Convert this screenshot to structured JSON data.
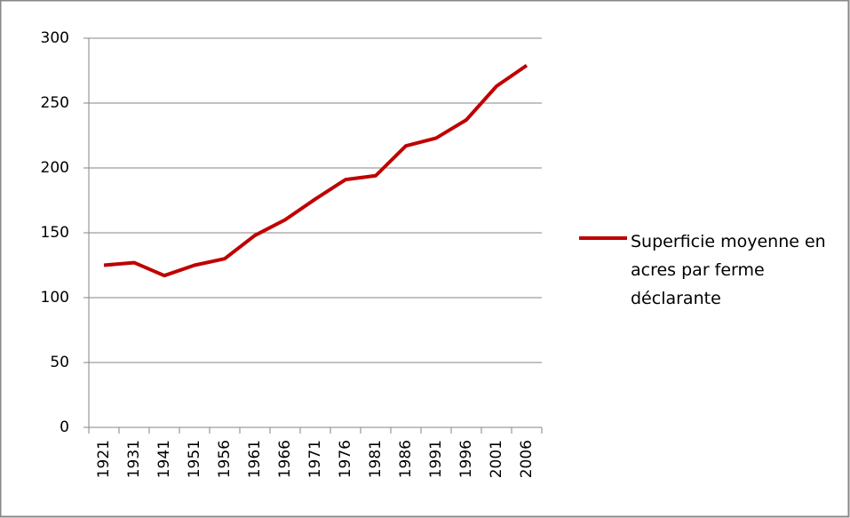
{
  "chart_data": {
    "type": "line",
    "categories": [
      "1921",
      "1931",
      "1941",
      "1951",
      "1956",
      "1961",
      "1966",
      "1971",
      "1976",
      "1981",
      "1986",
      "1991",
      "1996",
      "2001",
      "2006"
    ],
    "series": [
      {
        "name": "Superficie moyenne en acres par ferme déclarante",
        "color": "#c00000",
        "values": [
          125,
          127,
          117,
          125,
          130,
          148,
          160,
          176,
          191,
          194,
          217,
          223,
          237,
          263,
          279
        ]
      }
    ],
    "ylim": [
      0,
      300
    ],
    "yticks": [
      0,
      50,
      100,
      150,
      200,
      250,
      300
    ],
    "grid": true,
    "legend": "right"
  }
}
